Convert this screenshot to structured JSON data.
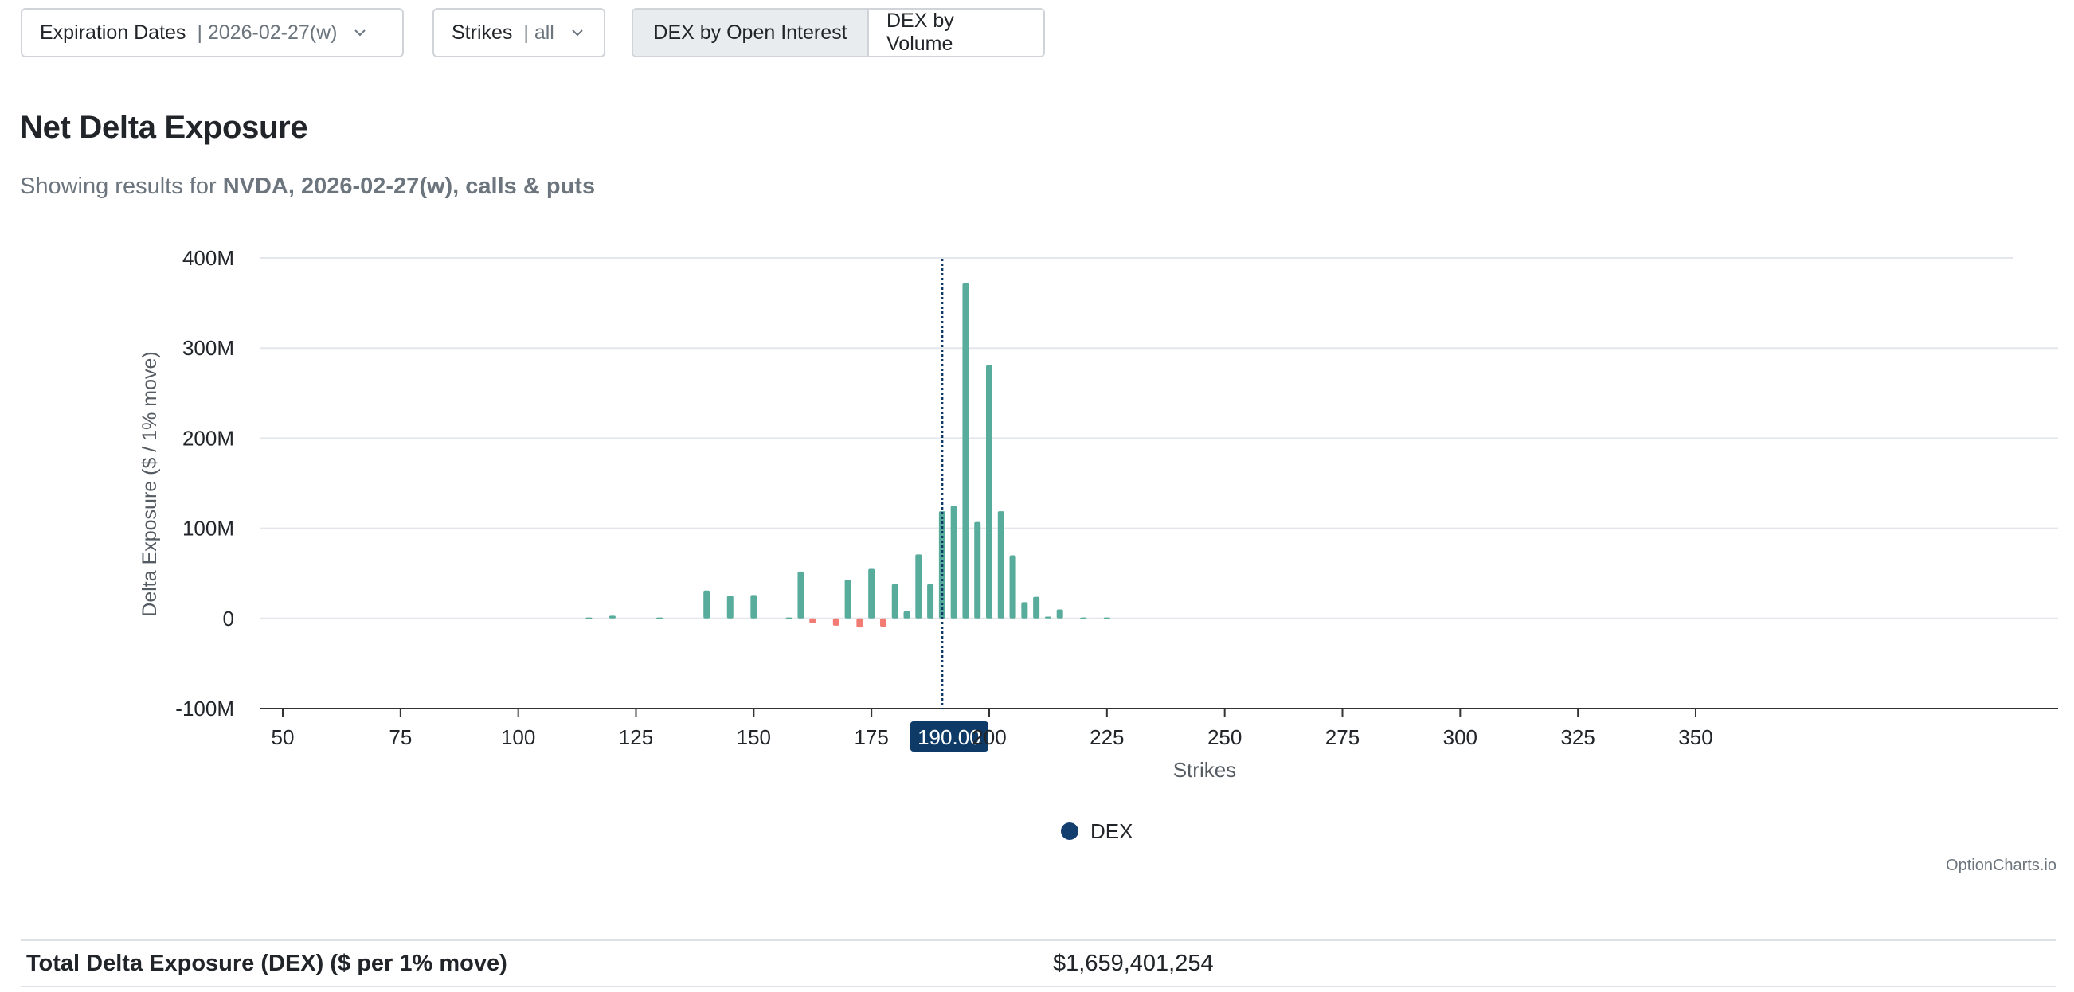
{
  "controls": {
    "expiration": {
      "label": "Expiration Dates",
      "value": "| 2026-02-27(w)"
    },
    "strikes": {
      "label": "Strikes",
      "value": "| all"
    },
    "view_buttons": [
      "DEX by Open Interest",
      "DEX by Volume"
    ],
    "active_view": "DEX by Open Interest"
  },
  "header": {
    "title": "Net Delta Exposure",
    "subtitle_prefix": "Showing results for",
    "subtitle_bold": "NVDA, 2026-02-27(w), calls & puts"
  },
  "chart_data": {
    "type": "bar",
    "xlabel": "Strikes",
    "ylabel": "Delta Exposure ($ / 1% move)",
    "xlim": [
      45,
      360
    ],
    "ylim": [
      -100,
      400
    ],
    "y_unit": "M",
    "x_ticks": [
      50,
      75,
      100,
      125,
      150,
      175,
      200,
      225,
      250,
      275,
      300,
      325,
      350
    ],
    "y_ticks": [
      "400M",
      "300M",
      "200M",
      "100M",
      "0",
      "-100M"
    ],
    "y_tick_values": [
      400,
      300,
      200,
      100,
      0,
      -100
    ],
    "grid": true,
    "crosshair_x": 190,
    "crosshair_label": "190.00",
    "legend": "DEX",
    "legend_position": "bottom-center",
    "colors": {
      "positive": "#58ac9b",
      "negative": "#f27b74",
      "legend": "#123f6e",
      "crosshair": "#0d3a66"
    },
    "series": [
      {
        "name": "DEX",
        "x": [
          115,
          120,
          130,
          140,
          145,
          150,
          157.5,
          160,
          162.5,
          167.5,
          170,
          172.5,
          175,
          177.5,
          180,
          182.5,
          185,
          187.5,
          190,
          192.5,
          195,
          197.5,
          200,
          202.5,
          205,
          207.5,
          210,
          212.5,
          215,
          220,
          225
        ],
        "values": [
          1,
          3,
          1,
          31,
          25,
          26,
          1,
          52,
          -5,
          -8,
          43,
          -10,
          55,
          -9,
          38,
          8,
          71,
          38,
          119,
          125,
          372,
          107,
          281,
          119,
          70,
          18,
          24,
          2,
          10,
          1,
          1
        ]
      }
    ]
  },
  "credit": "OptionCharts.io",
  "total": {
    "label": "Total Delta Exposure (DEX) ($ per 1% move)",
    "value": "$1,659,401,254"
  }
}
